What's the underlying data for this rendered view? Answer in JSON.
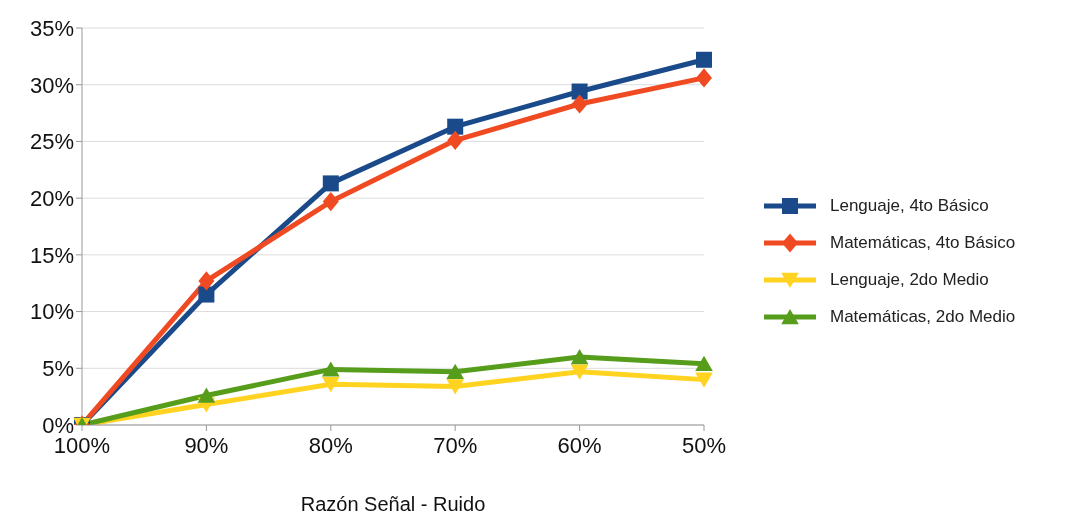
{
  "chart_data": {
    "type": "line",
    "xlabel": "Razón Señal - Ruido",
    "categories": [
      "100%",
      "90%",
      "80%",
      "70%",
      "60%",
      "50%"
    ],
    "series": [
      {
        "name": "Lenguaje, 4to Básico",
        "color": "#1a4a8a",
        "marker": "square",
        "values": [
          0,
          11.5,
          21.3,
          26.3,
          29.4,
          32.2
        ]
      },
      {
        "name": "Matemáticas, 4to Básico",
        "color": "#f04a23",
        "marker": "diamond",
        "values": [
          0,
          12.7,
          19.7,
          25.1,
          28.3,
          30.6
        ]
      },
      {
        "name": "Lenguaje, 2do Medio",
        "color": "#ffd320",
        "marker": "triangle-down",
        "values": [
          0,
          1.8,
          3.6,
          3.4,
          4.7,
          4.0
        ]
      },
      {
        "name": "Matemáticas, 2do Medio",
        "color": "#579d1c",
        "marker": "triangle",
        "values": [
          0,
          2.6,
          4.9,
          4.7,
          6.0,
          5.4
        ]
      }
    ],
    "ylim": [
      0,
      35
    ],
    "yticks": [
      {
        "value": 0,
        "label": "0%"
      },
      {
        "value": 5,
        "label": "5%"
      },
      {
        "value": 10,
        "label": "10%"
      },
      {
        "value": 15,
        "label": "15%"
      },
      {
        "value": 20,
        "label": "20%"
      },
      {
        "value": 25,
        "label": "25%"
      },
      {
        "value": 30,
        "label": "30%"
      },
      {
        "value": 35,
        "label": "35%"
      }
    ],
    "grid": "y",
    "legend": "right",
    "line_style": "solid"
  }
}
